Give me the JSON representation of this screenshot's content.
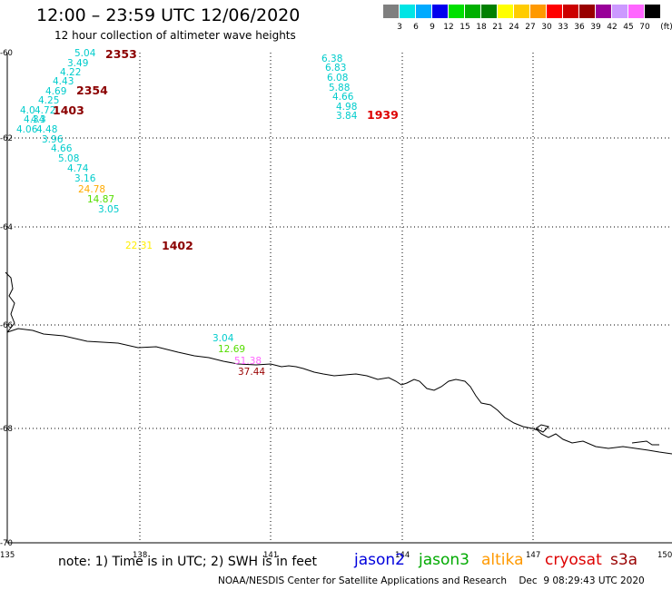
{
  "header": {
    "title": "12:00 – 23:59 UTC 12/06/2020",
    "subtitle": "12 hour collection of altimeter wave heights"
  },
  "color_scale": {
    "unit_label": "(ft)",
    "bins": [
      {
        "label": "3",
        "color": "#7f7f7f"
      },
      {
        "label": "6",
        "color": "#00e5e5"
      },
      {
        "label": "9",
        "color": "#00aaff"
      },
      {
        "label": "12",
        "color": "#0000ee"
      },
      {
        "label": "15",
        "color": "#00e000"
      },
      {
        "label": "18",
        "color": "#00b000"
      },
      {
        "label": "21",
        "color": "#008000"
      },
      {
        "label": "24",
        "color": "#ffff00"
      },
      {
        "label": "27",
        "color": "#ffcc00"
      },
      {
        "label": "30",
        "color": "#ff9900"
      },
      {
        "label": "33",
        "color": "#ff0000"
      },
      {
        "label": "36",
        "color": "#cc0000"
      },
      {
        "label": "39",
        "color": "#990000"
      },
      {
        "label": "42",
        "color": "#990099"
      },
      {
        "label": "45",
        "color": "#cc99ff"
      },
      {
        "label": "70",
        "color": "#ff66ff"
      },
      {
        "label": "",
        "color": "#000000"
      }
    ]
  },
  "map": {
    "lon_range": [
      135,
      150
    ],
    "lat_range": [
      -70,
      -60
    ],
    "lon_ticks": [
      "135",
      "138",
      "141",
      "144",
      "147",
      "150"
    ],
    "lat_ticks": [
      "-60",
      "-62",
      "-64",
      "-66",
      "-68",
      "-70"
    ],
    "grid": "dotted"
  },
  "observations": [
    {
      "text": "5.04",
      "color": "#00cccc"
    },
    {
      "text": "3.49",
      "color": "#00cccc"
    },
    {
      "text": "4.22",
      "color": "#00cccc"
    },
    {
      "text": "4.43",
      "color": "#00cccc"
    },
    {
      "text": "4.69",
      "color": "#00cccc"
    },
    {
      "text": "4.25",
      "color": "#00cccc"
    },
    {
      "text": "4.0",
      "color": "#00cccc"
    },
    {
      "text": "4.72",
      "color": "#00cccc"
    },
    {
      "text": "4.34",
      "color": "#00cccc"
    },
    {
      "text": "4.3",
      "color": "#00cccc"
    },
    {
      "text": "4.06",
      "color": "#00cccc"
    },
    {
      "text": "4.48",
      "color": "#00cccc"
    },
    {
      "text": "3.96",
      "color": "#00cccc"
    },
    {
      "text": "4.66",
      "color": "#00cccc"
    },
    {
      "text": "5.08",
      "color": "#00cccc"
    },
    {
      "text": "4.74",
      "color": "#00cccc"
    },
    {
      "text": "3.16",
      "color": "#00cccc"
    },
    {
      "text": "24.78",
      "color": "#ffaa00"
    },
    {
      "text": "14.87",
      "color": "#55dd00"
    },
    {
      "text": "3.05",
      "color": "#00cccc"
    },
    {
      "text": "22.31",
      "color": "#ffee00"
    },
    {
      "text": "6.38",
      "color": "#00cccc"
    },
    {
      "text": "6.83",
      "color": "#00cccc"
    },
    {
      "text": "6.08",
      "color": "#00cccc"
    },
    {
      "text": "5.88",
      "color": "#00cccc"
    },
    {
      "text": "4.66",
      "color": "#00cccc"
    },
    {
      "text": "4.98",
      "color": "#00cccc"
    },
    {
      "text": "3.84",
      "color": "#00cccc"
    },
    {
      "text": "3.04",
      "color": "#00cccc"
    },
    {
      "text": "12.69",
      "color": "#55dd00"
    },
    {
      "text": "51.38",
      "color": "#ff66ff"
    },
    {
      "text": "37.44",
      "color": "#990000"
    }
  ],
  "times": [
    {
      "text": "2353",
      "color": "#8b0000"
    },
    {
      "text": "2354",
      "color": "#8b0000"
    },
    {
      "text": "1403",
      "color": "#8b0000"
    },
    {
      "text": "1402",
      "color": "#8b0000"
    },
    {
      "text": "1939",
      "color": "#dd0000"
    }
  ],
  "footer": {
    "note": "note:  1) Time is in UTC;  2) SWH is in feet",
    "satellites": [
      {
        "name": "jason2",
        "color": "#0000dd"
      },
      {
        "name": "jason3",
        "color": "#00aa00"
      },
      {
        "name": "altika",
        "color": "#ff9900"
      },
      {
        "name": "cryosat",
        "color": "#dd0000"
      },
      {
        "name": "s3a",
        "color": "#990000"
      }
    ],
    "credit": "NOAA/NESDIS Center for Satellite Applications and Research    Dec  9 08:29:43 UTC 2020"
  }
}
